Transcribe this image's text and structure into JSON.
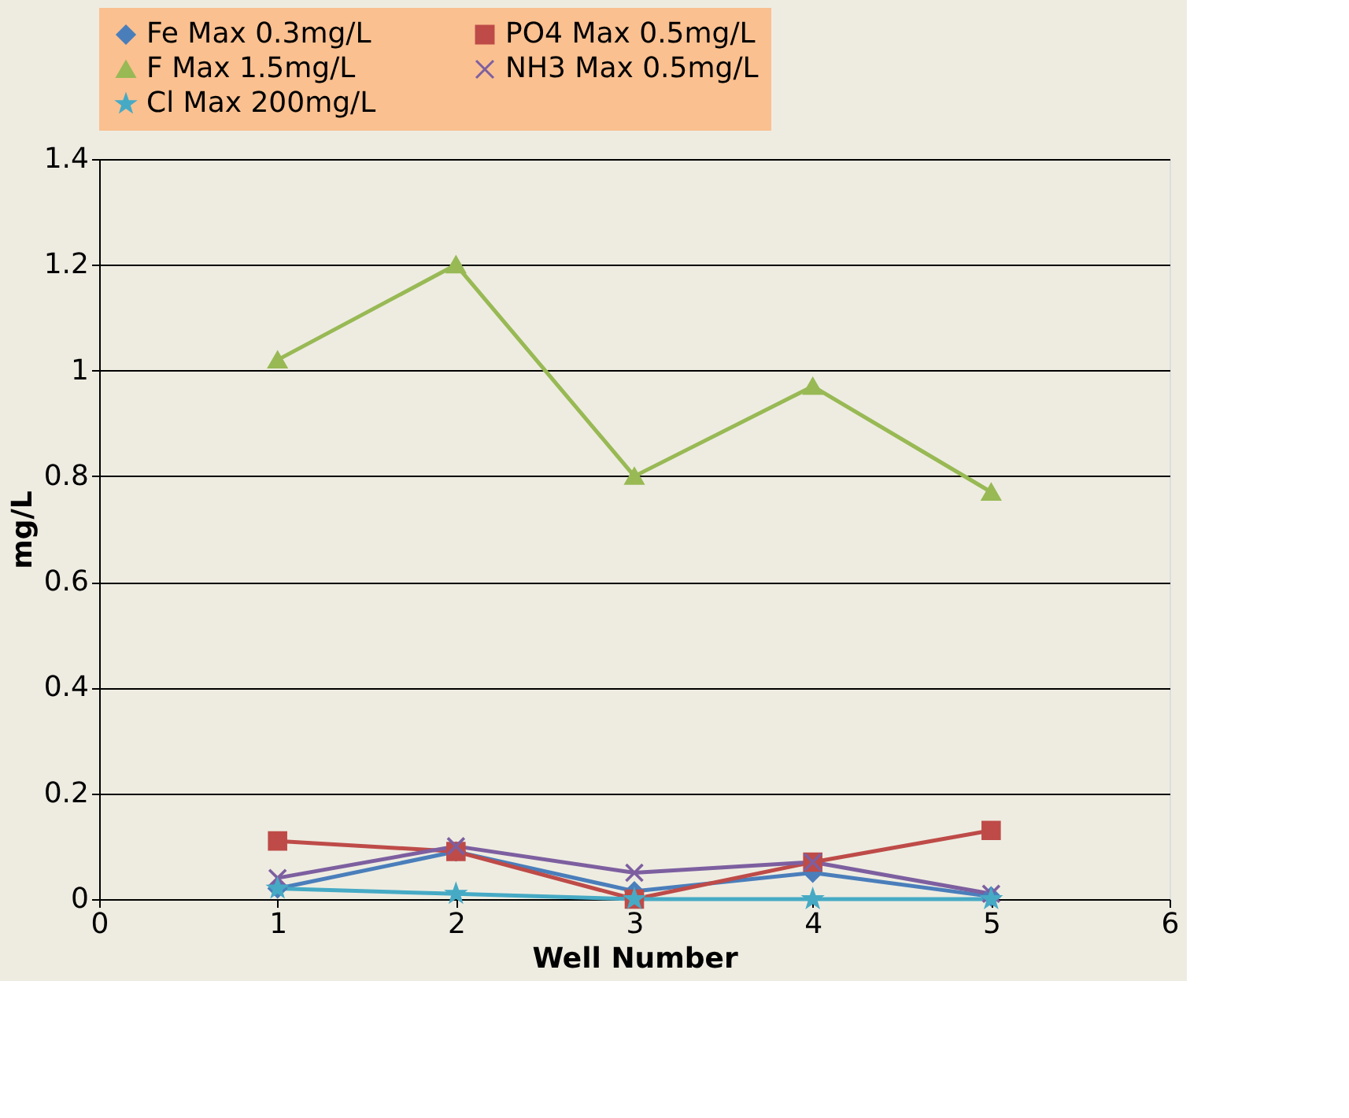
{
  "chart_data": {
    "type": "line",
    "xlabel": "Well Number",
    "ylabel": "mg/L",
    "x": [
      1,
      2,
      3,
      4,
      5
    ],
    "series": [
      {
        "name": "Fe Max 0.3mg/L",
        "color": "#4a7ebb",
        "marker": "diamond",
        "values": [
          0.02,
          0.09,
          0.015,
          0.05,
          0.005
        ]
      },
      {
        "name": "PO4 Max 0.5mg/L",
        "color": "#be4b48",
        "marker": "square",
        "values": [
          0.11,
          0.09,
          0.0,
          0.07,
          0.13
        ]
      },
      {
        "name": "F Max 1.5mg/L",
        "color": "#98b954",
        "marker": "triangle",
        "values": [
          1.02,
          1.2,
          0.8,
          0.97,
          0.77
        ]
      },
      {
        "name": "NH3 Max 0.5mg/L",
        "color": "#7d5fa0",
        "marker": "cross",
        "values": [
          0.04,
          0.1,
          0.05,
          0.07,
          0.01
        ]
      },
      {
        "name": "Cl Max 200mg/L",
        "color": "#46aac5",
        "marker": "star",
        "values": [
          0.02,
          0.01,
          0.0,
          0.0,
          0.0
        ]
      }
    ],
    "xlim": [
      0,
      6
    ],
    "xticks": [
      0,
      1,
      2,
      3,
      4,
      5,
      6
    ],
    "ylim": [
      0,
      1.4
    ],
    "yticks": [
      0,
      0.2,
      0.4,
      0.6,
      0.8,
      1,
      1.2,
      1.4
    ],
    "grid": "y",
    "legend": "top",
    "line_style": "solid"
  }
}
